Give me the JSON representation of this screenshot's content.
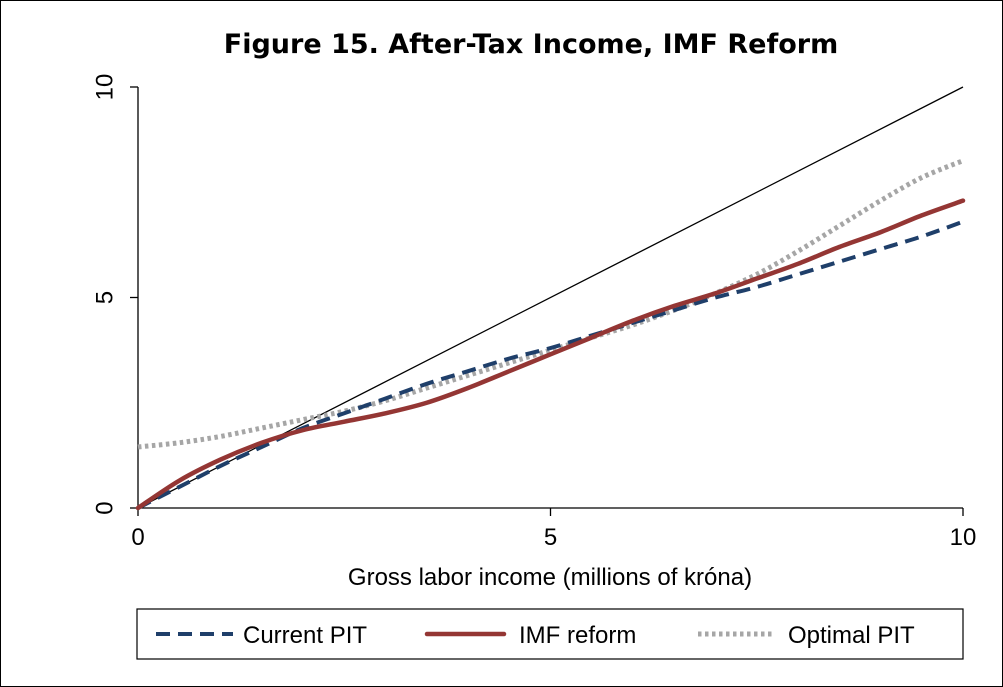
{
  "chart_data": {
    "type": "line",
    "title": "Figure 15. After-Tax Income, IMF Reform",
    "xlabel": "Gross labor income (millions of króna)",
    "ylabel": "",
    "xlim": [
      0,
      10
    ],
    "ylim": [
      0,
      10
    ],
    "xticks": [
      "0",
      "5",
      "10"
    ],
    "yticks": [
      "0",
      "5",
      "10"
    ],
    "grid": false,
    "legend_position": "bottom",
    "reference_line": {
      "x": [
        0,
        10
      ],
      "y": [
        0,
        10
      ],
      "color": "#000000"
    },
    "series": [
      {
        "name": "Current PIT",
        "style": "dashed",
        "color": "#1f3f6a",
        "x": [
          0,
          0.5,
          1,
          1.5,
          2,
          2.5,
          3,
          3.5,
          4,
          4.5,
          5,
          5.5,
          6,
          6.5,
          7,
          7.5,
          8,
          8.5,
          9,
          9.5,
          10
        ],
        "y": [
          0,
          0.5,
          1.0,
          1.45,
          1.9,
          2.25,
          2.6,
          2.95,
          3.25,
          3.55,
          3.8,
          4.1,
          4.4,
          4.7,
          5.0,
          5.25,
          5.55,
          5.85,
          6.15,
          6.45,
          6.8
        ]
      },
      {
        "name": "IMF reform",
        "style": "solid",
        "color": "#943634",
        "x": [
          0,
          0.5,
          1,
          1.5,
          2,
          2.5,
          3,
          3.5,
          4,
          4.5,
          5,
          5.5,
          6,
          6.5,
          7,
          7.5,
          8,
          8.5,
          9,
          9.5,
          10
        ],
        "y": [
          0,
          0.65,
          1.15,
          1.55,
          1.85,
          2.05,
          2.25,
          2.5,
          2.85,
          3.25,
          3.65,
          4.05,
          4.45,
          4.8,
          5.1,
          5.45,
          5.8,
          6.2,
          6.55,
          6.95,
          7.3
        ]
      },
      {
        "name": "Optimal PIT",
        "style": "dotted",
        "color": "#a6a6a6",
        "x": [
          0,
          0.5,
          1,
          1.5,
          2,
          2.5,
          3,
          3.5,
          4,
          4.5,
          5,
          5.5,
          6,
          6.5,
          7,
          7.5,
          8,
          8.5,
          9,
          9.5,
          10
        ],
        "y": [
          1.45,
          1.55,
          1.7,
          1.9,
          2.1,
          2.3,
          2.55,
          2.85,
          3.15,
          3.45,
          3.75,
          4.05,
          4.35,
          4.7,
          5.1,
          5.55,
          6.1,
          6.7,
          7.3,
          7.85,
          8.25
        ]
      }
    ]
  }
}
